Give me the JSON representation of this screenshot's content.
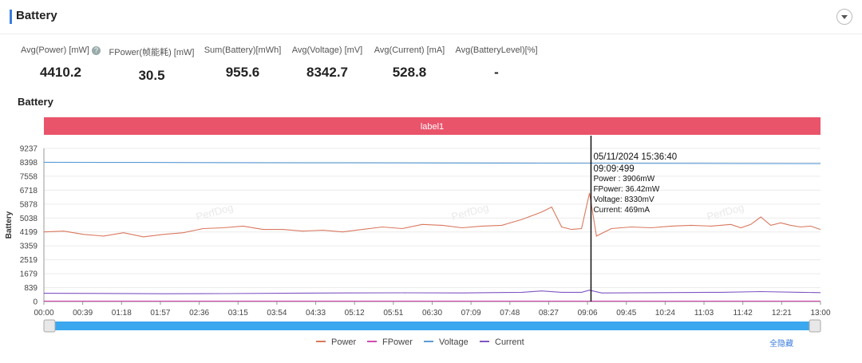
{
  "header": {
    "title": "Battery"
  },
  "stats": [
    {
      "label": "Avg(Power) [mW]",
      "value": "4410.2",
      "help": true
    },
    {
      "label": "FPower(帧能耗) [mW]",
      "value": "30.5"
    },
    {
      "label": "Sum(Battery)[mWh]",
      "value": "955.6"
    },
    {
      "label": "Avg(Voltage) [mV]",
      "value": "8342.7"
    },
    {
      "label": "Avg(Current) [mA]",
      "value": "528.8"
    },
    {
      "label": "Avg(BatteryLevel)[%]",
      "value": "-"
    }
  ],
  "section_title": "Battery",
  "band_label": "label1",
  "watermark": "PerfDog",
  "reset_label": "全隐藏",
  "tooltip": {
    "lines": [
      "05/11/2024 15:36:40",
      "09:09:499",
      "Power  : 3906mW",
      "FPower: 36.42mW",
      "Voltage: 8330mV",
      "Current: 469mA"
    ],
    "x_seconds": 549.5
  },
  "colors": {
    "power": "#d9785f",
    "fpower": "#d04ab0",
    "voltage": "#5b9bd5",
    "current": "#7f56c2",
    "band": "#e9546b",
    "slider": "#3aa7ee"
  },
  "chart_data": {
    "type": "line",
    "title": "",
    "ylabel": "Battery",
    "xlabel": "",
    "ylim": [
      0,
      9237
    ],
    "yticks": [
      0,
      839,
      1679,
      2519,
      3359,
      4199,
      5038,
      5878,
      6718,
      7558,
      8398,
      9237
    ],
    "xlim_seconds": [
      0,
      780
    ],
    "xtick_labels": [
      "00:00",
      "00:39",
      "01:18",
      "01:57",
      "02:36",
      "03:15",
      "03:54",
      "04:33",
      "05:12",
      "05:51",
      "06:30",
      "07:09",
      "07:48",
      "08:27",
      "09:06",
      "09:45",
      "10:24",
      "11:03",
      "11:42",
      "12:21",
      "13:00"
    ],
    "legend_position": "bottom-center",
    "series": [
      {
        "name": "Power",
        "x": [
          0,
          20,
          40,
          60,
          80,
          100,
          120,
          140,
          160,
          180,
          200,
          220,
          240,
          260,
          280,
          300,
          320,
          340,
          360,
          380,
          400,
          420,
          440,
          460,
          480,
          500,
          510,
          520,
          530,
          540,
          548,
          555,
          570,
          590,
          610,
          630,
          650,
          670,
          690,
          700,
          710,
          720,
          730,
          740,
          750,
          760,
          770,
          780
        ],
        "y": [
          4200,
          4250,
          4050,
          3950,
          4150,
          3900,
          4050,
          4150,
          4400,
          4450,
          4550,
          4350,
          4350,
          4250,
          4300,
          4200,
          4350,
          4500,
          4400,
          4650,
          4600,
          4450,
          4550,
          4600,
          4950,
          5400,
          5700,
          4500,
          4350,
          4400,
          6550,
          3950,
          4400,
          4500,
          4450,
          4550,
          4600,
          4550,
          4650,
          4450,
          4650,
          5100,
          4600,
          4750,
          4600,
          4500,
          4550,
          4350
        ]
      },
      {
        "name": "FPower",
        "x": [
          0,
          780
        ],
        "y": [
          30,
          30
        ]
      },
      {
        "name": "Voltage",
        "x": [
          0,
          100,
          200,
          300,
          400,
          500,
          600,
          700,
          780
        ],
        "y": [
          8398,
          8388,
          8378,
          8368,
          8358,
          8348,
          8335,
          8330,
          8320
        ]
      },
      {
        "name": "Current",
        "x": [
          0,
          60,
          120,
          180,
          240,
          300,
          360,
          420,
          480,
          500,
          520,
          540,
          548,
          560,
          620,
          680,
          720,
          760,
          780
        ],
        "y": [
          500,
          490,
          470,
          480,
          500,
          520,
          530,
          520,
          560,
          640,
          560,
          560,
          690,
          520,
          540,
          560,
          600,
          560,
          540
        ]
      }
    ]
  }
}
